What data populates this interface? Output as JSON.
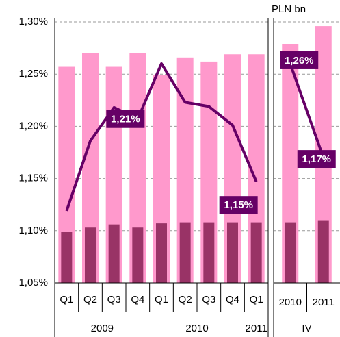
{
  "chart_data": {
    "type": "bar",
    "y2_label": "PLN bn",
    "ylim": [
      1.05,
      1.3
    ],
    "yticks": [
      {
        "value": 1.05,
        "label": "1,05%"
      },
      {
        "value": 1.1,
        "label": "1,10%"
      },
      {
        "value": 1.15,
        "label": "1,15%"
      },
      {
        "value": 1.2,
        "label": "1,20%"
      },
      {
        "value": 1.25,
        "label": "1,25%"
      },
      {
        "value": 1.3,
        "label": "1,30%"
      }
    ],
    "grid": true,
    "categories": [
      "Q1",
      "Q2",
      "Q3",
      "Q4",
      "Q1",
      "Q2",
      "Q3",
      "Q4",
      "Q1",
      "2010",
      "2011"
    ],
    "groups": [
      "2009",
      "2010",
      "2011",
      "IV"
    ],
    "series": [
      {
        "type": "bar",
        "color": "#ff99cc",
        "values": [
          1.257,
          1.27,
          1.257,
          1.27,
          1.249,
          1.266,
          1.262,
          1.269,
          1.269,
          1.279,
          1.296
        ]
      },
      {
        "type": "bar",
        "color": "#993366",
        "values": [
          1.099,
          1.103,
          1.106,
          1.103,
          1.107,
          1.108,
          1.108,
          1.108,
          1.108,
          1.108,
          1.11
        ]
      },
      {
        "type": "line",
        "color": "#660066",
        "values": [
          1.119,
          1.186,
          1.218,
          1.207,
          1.26,
          1.223,
          1.219,
          1.201,
          1.147,
          1.26,
          1.17
        ],
        "value_labels": [
          null,
          null,
          null,
          "1,21%",
          null,
          null,
          null,
          null,
          "1,15%",
          "1,26%",
          "1,17%"
        ]
      }
    ]
  }
}
